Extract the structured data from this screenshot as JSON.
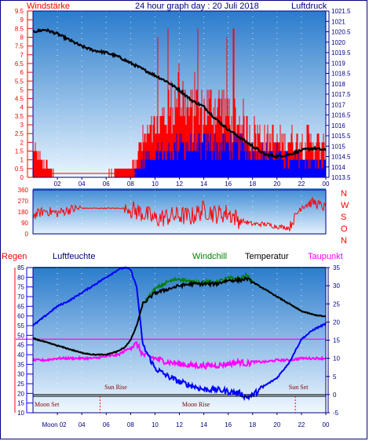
{
  "header": {
    "left_label": "Windstärke",
    "title": "24 hour graph day : 20 Juli 2018",
    "right_label": "Luftdruck"
  },
  "colors": {
    "red": "#ff0000",
    "blue": "#0000ff",
    "navy": "#000080",
    "black": "#000000",
    "green": "#008000",
    "magenta": "#ff00ff",
    "sky_top": "#2e7fd0",
    "sky_bottom": "#e8f4ff"
  },
  "chart_data": [
    {
      "type": "bar",
      "name": "wind-pressure",
      "x_ticks": [
        "02",
        "04",
        "06",
        "08",
        "10",
        "12",
        "14",
        "16",
        "18",
        "20",
        "22",
        "00"
      ],
      "wind": {
        "label": "Windstärke",
        "ylim": [
          0,
          9.5
        ],
        "y_ticks": [
          "0",
          "0.5",
          "1",
          "1.5",
          "2",
          "2.5",
          "3",
          "3.5",
          "4",
          "4.5",
          "5",
          "5.5",
          "6",
          "6.5",
          "7",
          "7.5",
          "8",
          "8.5",
          "9",
          "9.5"
        ],
        "gust_profile_hours": [
          0,
          0.5,
          2,
          5,
          8,
          9,
          10,
          11,
          11.5,
          12,
          12.5,
          13,
          14,
          15,
          16,
          17,
          18,
          19,
          20,
          21,
          22,
          23,
          24
        ],
        "gust_profile_values": [
          1.5,
          1,
          0,
          0,
          0.5,
          2,
          2.5,
          3.5,
          4,
          4.5,
          4,
          3.5,
          3.5,
          4,
          3.5,
          3,
          2.5,
          2,
          2,
          2,
          2,
          2,
          1.5
        ],
        "avg_profile_hours": [
          0,
          8,
          9,
          10,
          11,
          12,
          13,
          14,
          15,
          16,
          17,
          18,
          19,
          20,
          21,
          22,
          23,
          24
        ],
        "avg_profile_values": [
          0,
          0,
          1,
          1.5,
          1.5,
          2,
          2,
          2,
          2,
          2,
          2,
          1.5,
          1.5,
          1.5,
          1,
          1,
          1,
          1
        ]
      },
      "pressure": {
        "label": "Luftdruck",
        "ylim": [
          1013.5,
          1021.5
        ],
        "y_ticks": [
          "1013.5",
          "1014",
          "1014.5",
          "1015",
          "1015.5",
          "1016",
          "1016.5",
          "1017",
          "1017.5",
          "1018",
          "1018.5",
          "1019",
          "1019.5",
          "1020",
          "1020.5",
          "1021",
          "1021.5"
        ],
        "hours": [
          0,
          1,
          2,
          3,
          4,
          5,
          6,
          7,
          8,
          9,
          10,
          11,
          12,
          13,
          14,
          15,
          16,
          17,
          18,
          19,
          20,
          21,
          22,
          23,
          24
        ],
        "values": [
          1020.5,
          1020.6,
          1020.4,
          1020.1,
          1019.8,
          1019.6,
          1019.5,
          1019.3,
          1019.0,
          1018.7,
          1018.4,
          1018.1,
          1017.7,
          1017.2,
          1016.9,
          1016.3,
          1015.8,
          1015.4,
          1015.0,
          1014.6,
          1014.5,
          1014.6,
          1014.8,
          1014.9,
          1014.8
        ]
      }
    },
    {
      "type": "scatter",
      "name": "wind-direction",
      "y_ticks": [
        "0",
        "90",
        "180",
        "270",
        "360"
      ],
      "ylim": [
        0,
        360
      ],
      "compass": [
        "N",
        "W",
        "S",
        "O",
        "N"
      ],
      "hours": [
        0,
        1,
        2,
        3,
        4,
        5,
        6,
        7,
        7.5,
        8,
        9,
        10,
        11,
        12,
        13,
        14,
        15,
        16,
        17,
        18,
        19,
        20,
        21,
        22,
        23,
        24
      ],
      "values": [
        150,
        190,
        170,
        200,
        210,
        210,
        210,
        210,
        210,
        200,
        170,
        120,
        140,
        150,
        140,
        200,
        160,
        170,
        110,
        80,
        80,
        60,
        50,
        230,
        260,
        210
      ]
    },
    {
      "type": "line",
      "name": "weather",
      "legend": {
        "rain": "Regen",
        "humidity": "Luftfeuchte",
        "windchill": "Windchill",
        "temperature": "Temperatur",
        "dewpoint": "Taupunkt"
      },
      "humidity_ticks": [
        "10",
        "15",
        "20",
        "25",
        "30",
        "35",
        "40",
        "45",
        "50",
        "55",
        "60",
        "65",
        "70",
        "75",
        "80",
        "85"
      ],
      "humidity_ylim": [
        10,
        85
      ],
      "temp_ticks": [
        "-5",
        "0",
        "5",
        "10",
        "15",
        "20",
        "25",
        "30",
        "35"
      ],
      "temp_ylim": [
        -5,
        35
      ],
      "x_ticks": [
        "Moon 02",
        "04",
        "06",
        "08",
        "10",
        "12",
        "14",
        "16",
        "18",
        "20",
        "22",
        "00"
      ],
      "annotations": {
        "sun_rise": "Sun Rise",
        "sun_set": "Sun Set",
        "moon_set": "Moon Set",
        "moon_rise": "Moon Rise",
        "sun_rise_hour": 5.5,
        "sun_set_hour": 21.5
      },
      "hours": [
        0,
        1,
        2,
        3,
        4,
        5,
        6,
        7,
        7.5,
        8,
        8.5,
        9,
        10,
        11,
        12,
        13,
        14,
        15,
        16,
        17,
        17.5,
        18,
        19,
        20,
        21,
        22,
        23,
        24
      ],
      "temperature": [
        15.5,
        14.5,
        13.5,
        12.5,
        11.5,
        11,
        11,
        12,
        13,
        15,
        19,
        25,
        28,
        29,
        30,
        30.5,
        30.5,
        30.5,
        31.5,
        31.5,
        32,
        31,
        29,
        27,
        25,
        23,
        22,
        21.5
      ],
      "windchill": [
        15.5,
        14.5,
        13.5,
        12.5,
        11.5,
        11,
        11,
        12,
        13,
        15,
        19,
        25,
        29,
        31,
        32,
        31,
        31,
        31,
        32,
        32,
        33,
        31,
        29,
        27,
        25,
        23,
        22,
        21.5
      ],
      "dewpoint": [
        9.5,
        9.5,
        10,
        10,
        10,
        10,
        10.5,
        11,
        12,
        13,
        14,
        11,
        10,
        9,
        8.5,
        8,
        8,
        8,
        8.5,
        9,
        8.5,
        9,
        9,
        9.5,
        9.5,
        10,
        10,
        10
      ],
      "humidity": [
        55,
        60,
        65,
        68,
        72,
        76,
        80,
        84,
        85,
        84,
        75,
        45,
        33,
        29,
        26,
        24,
        22,
        22,
        21,
        20,
        18,
        19,
        24,
        28,
        36,
        48,
        53,
        56
      ]
    }
  ]
}
